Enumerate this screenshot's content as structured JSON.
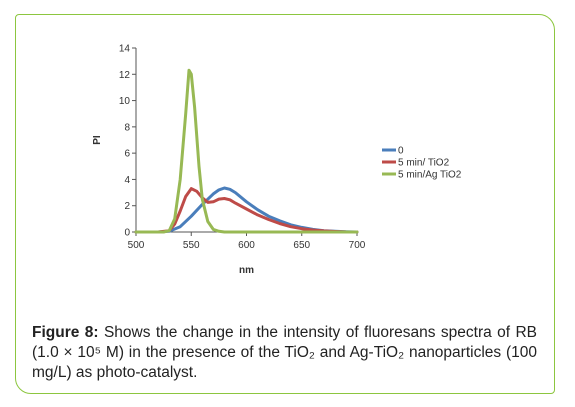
{
  "chart_data": {
    "type": "line",
    "xlabel": "nm",
    "ylabel": "PI",
    "xlim": [
      500,
      700
    ],
    "ylim": [
      0,
      14
    ],
    "x_ticks": [
      500,
      550,
      600,
      650,
      700
    ],
    "y_ticks": [
      0,
      2,
      4,
      6,
      8,
      10,
      12,
      14
    ],
    "grid": false,
    "legend_position": "right",
    "series": [
      {
        "name": "0",
        "color": "#4a7ebb",
        "points": [
          [
            500,
            0
          ],
          [
            520,
            0
          ],
          [
            530,
            0.05
          ],
          [
            540,
            0.4
          ],
          [
            550,
            1.2
          ],
          [
            560,
            2.1
          ],
          [
            570,
            2.9
          ],
          [
            575,
            3.2
          ],
          [
            580,
            3.35
          ],
          [
            585,
            3.25
          ],
          [
            590,
            3.0
          ],
          [
            600,
            2.3
          ],
          [
            610,
            1.7
          ],
          [
            620,
            1.2
          ],
          [
            630,
            0.85
          ],
          [
            640,
            0.55
          ],
          [
            650,
            0.35
          ],
          [
            660,
            0.2
          ],
          [
            670,
            0.1
          ],
          [
            680,
            0.05
          ],
          [
            690,
            0.02
          ],
          [
            700,
            0
          ]
        ]
      },
      {
        "name": "5 min/ TiO2",
        "color": "#be4b48",
        "points": [
          [
            500,
            0
          ],
          [
            520,
            0
          ],
          [
            530,
            0.1
          ],
          [
            535,
            0.6
          ],
          [
            540,
            1.6
          ],
          [
            545,
            2.7
          ],
          [
            550,
            3.3
          ],
          [
            555,
            3.1
          ],
          [
            560,
            2.6
          ],
          [
            565,
            2.25
          ],
          [
            570,
            2.3
          ],
          [
            575,
            2.5
          ],
          [
            580,
            2.55
          ],
          [
            585,
            2.45
          ],
          [
            590,
            2.2
          ],
          [
            600,
            1.75
          ],
          [
            610,
            1.3
          ],
          [
            620,
            0.95
          ],
          [
            630,
            0.65
          ],
          [
            640,
            0.4
          ],
          [
            650,
            0.25
          ],
          [
            660,
            0.15
          ],
          [
            670,
            0.08
          ],
          [
            680,
            0.04
          ],
          [
            690,
            0.01
          ],
          [
            700,
            0
          ]
        ]
      },
      {
        "name": "5 min/Ag TiO2",
        "color": "#98b954",
        "points": [
          [
            500,
            0
          ],
          [
            525,
            0
          ],
          [
            530,
            0.1
          ],
          [
            535,
            1.0
          ],
          [
            540,
            4.0
          ],
          [
            545,
            9.0
          ],
          [
            548,
            12.3
          ],
          [
            550,
            12.0
          ],
          [
            553,
            9.5
          ],
          [
            557,
            5.0
          ],
          [
            560,
            2.5
          ],
          [
            565,
            0.8
          ],
          [
            570,
            0.2
          ],
          [
            575,
            0.05
          ],
          [
            580,
            0
          ],
          [
            700,
            0
          ]
        ]
      }
    ]
  },
  "caption": {
    "label": "Figure 8:",
    "text": " Shows the change in the intensity of fluoresans spectra of RB (1.0 × 10⁵ M) in the presence of the TiO₂ and Ag-TiO₂ nanoparticles (100 mg/L) as photo-catalyst."
  },
  "colors": {
    "frame": "#8cc63f"
  }
}
